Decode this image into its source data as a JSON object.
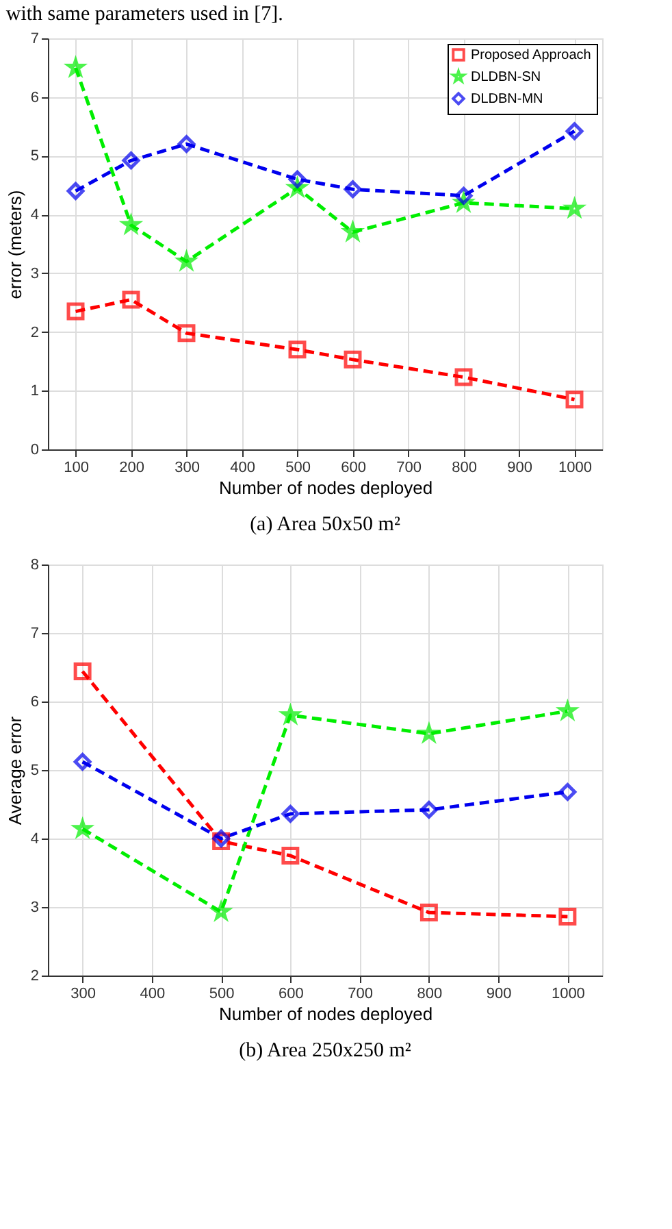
{
  "chart_data": [
    {
      "type": "line",
      "xlabel": "Number of nodes deployed",
      "ylabel": "error (meters)",
      "annotations": [
        "with same parameters used in [7].",
        "(a) Area 50x50 m²"
      ],
      "x": [
        100,
        200,
        300,
        500,
        600,
        800,
        1000
      ],
      "xlim": [
        50,
        1050
      ],
      "xticks": [
        100,
        200,
        300,
        400,
        500,
        600,
        700,
        800,
        900,
        1000
      ],
      "ylim": [
        0,
        7
      ],
      "yticks": [
        0,
        1,
        2,
        3,
        4,
        5,
        6,
        7
      ],
      "grid": true,
      "legend": "top right",
      "line_style": "dashed",
      "series": [
        {
          "name": "Proposed Approach",
          "color": "#ff0000",
          "marker": "square",
          "values": [
            2.35,
            2.55,
            1.98,
            1.7,
            1.53,
            1.23,
            0.85
          ]
        },
        {
          "name": "DLDBN-SN",
          "color": "#00ee00",
          "marker": "star",
          "values": [
            6.5,
            3.82,
            3.2,
            4.45,
            3.7,
            4.2,
            4.1
          ]
        },
        {
          "name": "DLDBN-MN",
          "color": "#0000ee",
          "marker": "diamond",
          "values": [
            4.4,
            4.92,
            5.2,
            4.6,
            4.43,
            4.32,
            5.42
          ]
        }
      ]
    },
    {
      "type": "line",
      "xlabel": "Number of nodes deployed",
      "ylabel": "Average error",
      "annotations": [
        "(b) Area 250x250 m²"
      ],
      "x": [
        300,
        500,
        600,
        800,
        1000
      ],
      "xlim": [
        250,
        1050
      ],
      "xticks": [
        300,
        400,
        500,
        600,
        700,
        800,
        900,
        1000
      ],
      "ylim": [
        2,
        8
      ],
      "yticks": [
        2,
        3,
        4,
        5,
        6,
        7,
        8
      ],
      "grid": true,
      "legend": "top right",
      "line_style": "dashed",
      "series": [
        {
          "name": "Proposed Approach",
          "color": "#ff0000",
          "marker": "square",
          "values": [
            6.44,
            3.96,
            3.75,
            2.92,
            2.86
          ]
        },
        {
          "name": "DLDBN-SN",
          "color": "#00ee00",
          "marker": "star",
          "values": [
            4.14,
            2.93,
            5.8,
            5.53,
            5.86
          ]
        },
        {
          "name": "DLDBN-MN",
          "color": "#0000ee",
          "marker": "diamond",
          "values": [
            5.12,
            4.0,
            4.36,
            4.42,
            4.68
          ]
        }
      ]
    }
  ]
}
